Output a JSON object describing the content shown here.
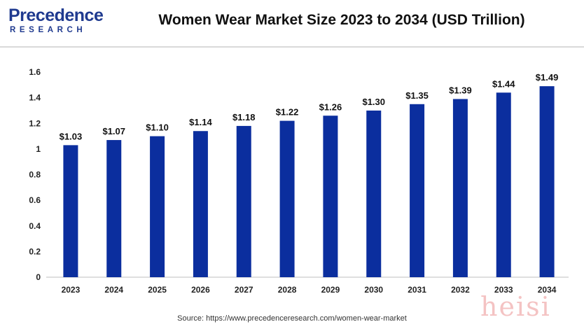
{
  "brand": {
    "name_line1": "Precedence",
    "name_line2": "RESEARCH",
    "color": "#1f3a8f"
  },
  "source_text": "Source: https://www.precedenceresearch.com/women-wear-market",
  "watermark_text": "heisi",
  "chart_data": {
    "type": "bar",
    "title": "Women Wear Market Size 2023 to 2034 (USD Trillion)",
    "xlabel": "",
    "ylabel": "",
    "categories": [
      "2023",
      "2024",
      "2025",
      "2026",
      "2027",
      "2028",
      "2029",
      "2030",
      "2031",
      "2032",
      "2033",
      "2034"
    ],
    "values": [
      1.03,
      1.07,
      1.1,
      1.14,
      1.18,
      1.22,
      1.26,
      1.3,
      1.35,
      1.39,
      1.44,
      1.49
    ],
    "data_labels": [
      "$1.03",
      "$1.07",
      "$1.10",
      "$1.14",
      "$1.18",
      "$1.22",
      "$1.26",
      "$1.30",
      "$1.35",
      "$1.39",
      "$1.44",
      "$1.49"
    ],
    "ylim": [
      0,
      1.6
    ],
    "yticks": [
      "0",
      "0.2",
      "0.4",
      "0.6",
      "0.8",
      "1",
      "1.2",
      "1.4",
      "1.6"
    ],
    "grid": false,
    "legend": "none",
    "bar_color": "#0b2e9e"
  }
}
